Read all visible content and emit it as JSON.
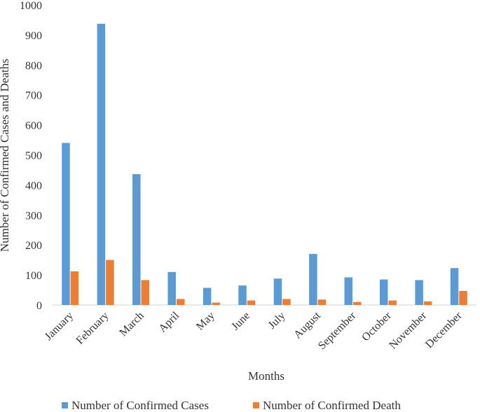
{
  "chart_data": {
    "type": "bar",
    "title": "",
    "xlabel": "Months",
    "ylabel": "Number of Confirmed Cases and Deaths",
    "categories": [
      "January",
      "February",
      "March",
      "April",
      "May",
      "June",
      "July",
      "August",
      "September",
      "October",
      "November",
      "December"
    ],
    "series": [
      {
        "name": "Number of Confirmed Cases",
        "color": "#5b9bd5",
        "values": [
          540,
          937,
          436,
          110,
          57,
          65,
          88,
          170,
          92,
          85,
          83,
          123
        ]
      },
      {
        "name": "Number of Confirmed Death",
        "color": "#ed7d31",
        "values": [
          112,
          150,
          83,
          20,
          8,
          15,
          20,
          18,
          10,
          15,
          12,
          47
        ]
      }
    ],
    "yticks": [
      0,
      100,
      200,
      300,
      400,
      500,
      600,
      700,
      800,
      900,
      1000
    ],
    "ylim": [
      0,
      1000
    ],
    "grid": false,
    "legend_position": "bottom"
  }
}
